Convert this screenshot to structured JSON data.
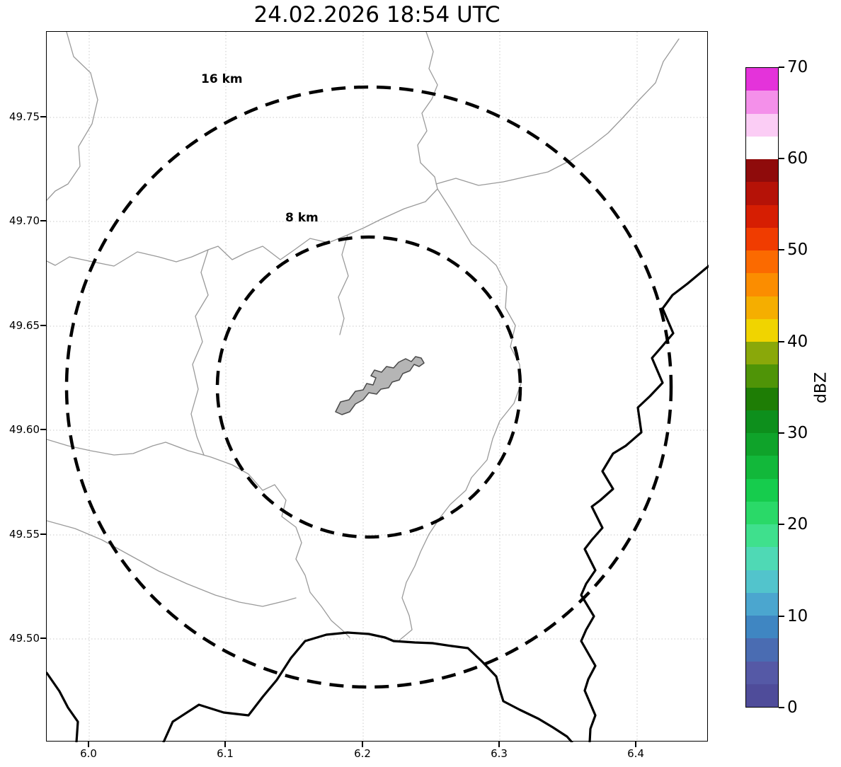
{
  "title": "24.02.2026 18:54 UTC",
  "map": {
    "x_tick_labels": [
      "6.0",
      "6.1",
      "6.2",
      "6.3",
      "6.4"
    ],
    "y_tick_labels": [
      "49.75",
      "49.70",
      "49.65",
      "49.60",
      "49.55",
      "49.50"
    ],
    "range_rings": {
      "outer_label": "16 km",
      "inner_label": "8 km"
    }
  },
  "colorbar": {
    "label": "dBZ",
    "tick_labels": [
      "70",
      "60",
      "50",
      "40",
      "30",
      "20",
      "10",
      "0"
    ],
    "segments_top_to_bottom": [
      "#e433da",
      "#f490ea",
      "#fbcdf5",
      "#ffffff",
      "#8f0b0b",
      "#b51207",
      "#d61e02",
      "#f03c00",
      "#fb6a00",
      "#fb8d00",
      "#f5ae00",
      "#f0d400",
      "#8aa80a",
      "#4f9407",
      "#1e7d05",
      "#0d8f1c",
      "#0fa32a",
      "#12b83a",
      "#16cc4d",
      "#2ad968",
      "#3fe08d",
      "#4fd9b5",
      "#52c4cc",
      "#4ba6cf",
      "#3f86c2",
      "#4a6cb2",
      "#5559a6",
      "#4f4c9a"
    ]
  },
  "chart_data": {
    "type": "heatmap",
    "title": "24.02.2026 18:54 UTC",
    "xlabel": "",
    "ylabel": "",
    "x_ticks": [
      6.0,
      6.1,
      6.2,
      6.3,
      6.4
    ],
    "y_ticks": [
      49.5,
      49.55,
      49.6,
      49.65,
      49.7,
      49.75
    ],
    "xlim": [
      5.969,
      6.453
    ],
    "ylim": [
      49.45,
      49.791
    ],
    "grid": "dotted",
    "colorbar": {
      "label": "dBZ",
      "min": 0,
      "max": 70,
      "tick_step": 10,
      "segment_step": 2.5
    },
    "range_rings": [
      {
        "label": "16 km",
        "radius_km": 16,
        "center_lon": 6.204,
        "center_lat": 49.622
      },
      {
        "label": "8 km",
        "radius_km": 8,
        "center_lon": 6.204,
        "center_lat": 49.622
      }
    ],
    "reflectivity_values": [],
    "note": "no radar echoes visible; basemap shows thin gray boundary/river lines, thick black country border and a gray city polygon near ring center"
  }
}
